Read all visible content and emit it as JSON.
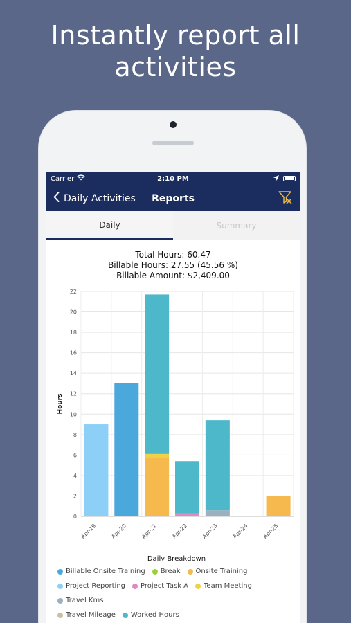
{
  "headline": {
    "line1": "Instantly report all",
    "line2": "activities"
  },
  "status_bar": {
    "carrier": "Carrier",
    "time": "2:10 PM"
  },
  "navbar": {
    "back_label": "Daily Activities",
    "title": "Reports"
  },
  "tabs": [
    {
      "label": "Daily",
      "active": true
    },
    {
      "label": "Summary",
      "active": false
    }
  ],
  "totals": {
    "total_hours": "Total Hours: 60.47",
    "billable_hours": "Billable Hours: 27.55 (45.56 %)",
    "billable_amount": "Billable Amount: $2,409.00"
  },
  "icons": {
    "back": "chevron-left-icon",
    "filter": "filter-icon",
    "wifi": "wifi-icon",
    "location": "location-arrow-icon",
    "battery": "battery-icon"
  },
  "colors": {
    "navbar": "#1b2d5e",
    "background": "#5a6788"
  },
  "chart_data": {
    "type": "bar",
    "stacked": true,
    "xlabel": "Daily Breakdown",
    "ylabel": "Hours",
    "ylim": [
      0,
      22
    ],
    "yticks": [
      "0",
      "2",
      "4",
      "6",
      "8",
      "10",
      "12",
      "14",
      "16",
      "18",
      "20",
      "22"
    ],
    "categories": [
      "Apr-19",
      "Apr-20",
      "Apr-21",
      "Apr-22",
      "Apr-23",
      "Apr-24",
      "Apr-25"
    ],
    "grid": true,
    "legend": "bottom",
    "series": [
      {
        "name": "Billable Onsite Training",
        "color": "#4aa8dc",
        "values": [
          0,
          13,
          0,
          0,
          0,
          0,
          0
        ]
      },
      {
        "name": "Break",
        "color": "#9bd03a",
        "values": [
          0,
          0,
          0,
          0,
          0,
          0,
          0
        ]
      },
      {
        "name": "Onsite Training",
        "color": "#f5b94d",
        "values": [
          0,
          0,
          5.8,
          0,
          0,
          0,
          2
        ]
      },
      {
        "name": "Project Reporting",
        "color": "#8dd0f7",
        "values": [
          9,
          0,
          0,
          0,
          0,
          0,
          0
        ]
      },
      {
        "name": "Project Task A",
        "color": "#e089c4",
        "values": [
          0,
          0,
          0,
          0.3,
          0,
          0,
          0
        ]
      },
      {
        "name": "Team Meeting",
        "color": "#f0d044",
        "values": [
          0,
          0,
          0.3,
          0,
          0,
          0,
          0
        ]
      },
      {
        "name": "Travel Kms",
        "color": "#9ab2bf",
        "values": [
          0,
          0,
          0,
          0,
          0.6,
          0,
          0
        ]
      },
      {
        "name": "Travel Mileage",
        "color": "#c9c0a3",
        "values": [
          0,
          0,
          0,
          0,
          0,
          0,
          0
        ]
      },
      {
        "name": "Worked Hours",
        "color": "#4db8c9",
        "values": [
          0,
          0,
          15.6,
          5.1,
          8.8,
          0,
          0
        ]
      }
    ]
  }
}
